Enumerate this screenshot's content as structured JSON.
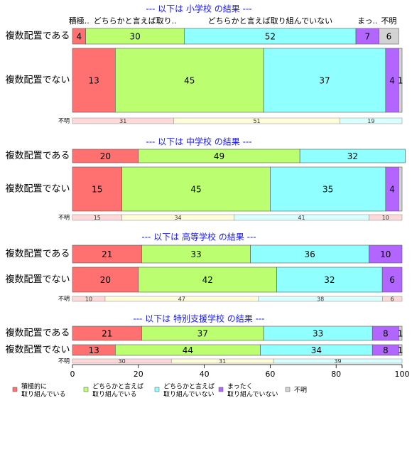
{
  "chart_data": {
    "type": "bar",
    "orientation": "horizontal",
    "stacked": true,
    "xlim": [
      0,
      100
    ],
    "x_ticks": [
      0,
      20,
      40,
      60,
      80,
      100
    ],
    "colors": [
      "#ff7070",
      "#bbff70",
      "#8fffff",
      "#b266ff",
      "#d3d3d3"
    ],
    "unknown_colors": [
      "#ffd9d9",
      "#fffdd9",
      "#d9ffff"
    ],
    "legend": {
      "placement": "bottom-left",
      "items": [
        {
          "line1": "積極的に",
          "line2": "取り組んでいる"
        },
        {
          "line1": "どちらかと言えば",
          "line2": "取り組んでいる"
        },
        {
          "line1": "どちらかと言えば",
          "line2": "取り組んでいない"
        },
        {
          "line1": "まったく",
          "line2": "取り組んでいない"
        },
        {
          "line1": "不明",
          "line2": ""
        }
      ]
    },
    "top_header_labels": [
      "積極..",
      "どちらかと言えば取り..",
      "どちらかと言えば取り組んでいない",
      "まっ..",
      "不明"
    ],
    "unknown_label": "不明",
    "panels": [
      {
        "title": "--- 以下は 小学校 の結果 ---",
        "rows": [
          {
            "label": "複数配置である",
            "values": [
              4,
              30,
              52,
              7,
              6
            ],
            "labels": [
              "4",
              "30",
              "52",
              "7",
              "6"
            ]
          },
          {
            "label": "複数配置でない",
            "values": [
              13,
              45,
              37,
              4,
              1
            ],
            "labels": [
              "13",
              "45",
              "37",
              "4",
              "1"
            ]
          }
        ],
        "unknown": {
          "values": [
            31,
            51,
            19
          ],
          "labels": [
            "31",
            "51",
            "19"
          ]
        }
      },
      {
        "title": "--- 以下は 中学校 の結果 ---",
        "rows": [
          {
            "label": "複数配置である",
            "values": [
              20,
              49,
              32,
              0,
              0
            ],
            "labels": [
              "20",
              "49",
              "32",
              "",
              ""
            ]
          },
          {
            "label": "複数配置でない",
            "values": [
              15,
              45,
              35,
              4,
              1
            ],
            "labels": [
              "15",
              "45",
              "35",
              "4",
              ""
            ]
          }
        ],
        "unknown": {
          "values": [
            15,
            34,
            41,
            10
          ],
          "labels": [
            "15",
            "34",
            "41",
            "10"
          ]
        }
      },
      {
        "title": "--- 以下は 高等学校 の結果 ---",
        "rows": [
          {
            "label": "複数配置である",
            "values": [
              21,
              33,
              36,
              10,
              0
            ],
            "labels": [
              "21",
              "33",
              "36",
              "10",
              ""
            ]
          },
          {
            "label": "複数配置でない",
            "values": [
              20,
              42,
              32,
              6,
              0
            ],
            "labels": [
              "20",
              "42",
              "32",
              "6",
              ""
            ]
          }
        ],
        "unknown": {
          "values": [
            10,
            47,
            38,
            6
          ],
          "labels": [
            "10",
            "47",
            "38",
            "6"
          ]
        }
      },
      {
        "title": "--- 以下は 特別支援学校 の結果 ---",
        "rows": [
          {
            "label": "複数配置である",
            "values": [
              21,
              37,
              33,
              8,
              1
            ],
            "labels": [
              "21",
              "37",
              "33",
              "8",
              "1"
            ]
          },
          {
            "label": "複数配置でない",
            "values": [
              13,
              44,
              34,
              8,
              1
            ],
            "labels": [
              "13",
              "44",
              "34",
              "8",
              "1"
            ]
          }
        ],
        "unknown": {
          "values": [
            30,
            31,
            39
          ],
          "labels": [
            "30",
            "31",
            "39"
          ]
        }
      }
    ]
  }
}
